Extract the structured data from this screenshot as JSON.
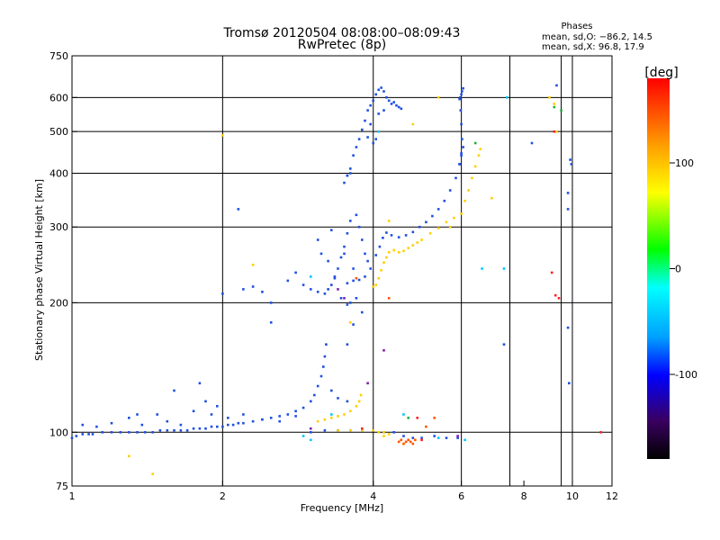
{
  "chart_data": {
    "type": "scatter",
    "title": "Tromsø 20120504 08:08:00–08:09:43",
    "subtitle": "RwPretec (8p)",
    "xlabel": "Frequency [MHz]",
    "ylabel": "Stationary phase Virtual Height [km]",
    "x_scale": "log",
    "y_scale": "log",
    "xlim": [
      1,
      12
    ],
    "ylim": [
      75,
      750
    ],
    "x_ticks": [
      1,
      2,
      4,
      6,
      8,
      10,
      12
    ],
    "y_ticks": [
      75,
      100,
      200,
      300,
      400,
      500,
      600,
      750
    ],
    "x_grid": [
      1,
      2,
      4,
      6,
      7.5,
      9.5,
      10,
      12
    ],
    "y_grid": [
      100,
      200,
      300,
      400,
      500,
      600
    ],
    "grid": true,
    "info": {
      "header": "Phases",
      "line1": "mean, sd,O: −86.2, 14.5",
      "line2": "mean, sd,X:  96.8, 17.9"
    },
    "colorbar": {
      "label": "[deg]",
      "range": [
        -180,
        180
      ],
      "ticks": [
        100,
        0,
        -100
      ],
      "colors": [
        "#000000",
        "#3a0060",
        "#0000ff",
        "#00a0ff",
        "#00ffff",
        "#00ff00",
        "#ffff00",
        "#ff9900",
        "#ff0000"
      ]
    },
    "series": [
      {
        "color": "#2050e0",
        "points": [
          [
            1.0,
            97
          ],
          [
            1.02,
            98
          ],
          [
            1.05,
            99
          ],
          [
            1.08,
            99
          ],
          [
            1.1,
            99
          ],
          [
            1.15,
            100
          ],
          [
            1.2,
            100
          ],
          [
            1.25,
            100
          ],
          [
            1.3,
            100
          ],
          [
            1.35,
            100
          ],
          [
            1.4,
            100
          ],
          [
            1.45,
            100
          ],
          [
            1.5,
            101
          ],
          [
            1.55,
            101
          ],
          [
            1.6,
            101
          ],
          [
            1.65,
            101
          ],
          [
            1.7,
            101
          ],
          [
            1.75,
            102
          ],
          [
            1.8,
            102
          ],
          [
            1.85,
            102
          ],
          [
            1.9,
            103
          ],
          [
            1.95,
            103
          ],
          [
            2.0,
            103
          ],
          [
            2.05,
            104
          ],
          [
            2.1,
            104
          ],
          [
            2.15,
            105
          ],
          [
            2.2,
            105
          ],
          [
            2.3,
            106
          ],
          [
            2.4,
            107
          ],
          [
            2.5,
            108
          ],
          [
            2.6,
            109
          ],
          [
            2.7,
            110
          ],
          [
            2.8,
            112
          ],
          [
            2.9,
            114
          ],
          [
            3.0,
            118
          ],
          [
            3.05,
            122
          ],
          [
            3.1,
            128
          ],
          [
            3.15,
            135
          ],
          [
            3.18,
            142
          ],
          [
            3.2,
            150
          ],
          [
            3.22,
            160
          ],
          [
            3.0,
            100
          ],
          [
            3.2,
            101
          ],
          [
            3.4,
            101
          ],
          [
            3.6,
            101
          ],
          [
            3.8,
            101
          ],
          [
            4.0,
            101
          ],
          [
            4.2,
            100
          ],
          [
            4.4,
            100
          ],
          [
            4.6,
            98
          ],
          [
            4.8,
            97
          ],
          [
            5.0,
            97
          ],
          [
            5.3,
            98
          ],
          [
            5.6,
            97
          ],
          [
            5.9,
            97
          ],
          [
            1.05,
            104
          ],
          [
            1.12,
            103
          ],
          [
            1.2,
            105
          ],
          [
            1.3,
            108
          ],
          [
            1.38,
            104
          ],
          [
            1.48,
            110
          ],
          [
            1.55,
            106
          ],
          [
            1.65,
            104
          ],
          [
            1.75,
            112
          ],
          [
            1.8,
            130
          ],
          [
            1.85,
            118
          ],
          [
            1.9,
            110
          ],
          [
            1.95,
            115
          ],
          [
            2.05,
            108
          ],
          [
            2.2,
            110
          ],
          [
            2.4,
            107
          ],
          [
            2.6,
            106
          ],
          [
            2.8,
            109
          ],
          [
            3.3,
            125
          ],
          [
            3.4,
            120
          ],
          [
            3.55,
            118
          ],
          [
            3.55,
            222
          ],
          [
            3.65,
            225
          ],
          [
            3.75,
            226
          ],
          [
            3.85,
            230
          ],
          [
            3.95,
            240
          ],
          [
            4.05,
            258
          ],
          [
            4.12,
            270
          ],
          [
            4.18,
            283
          ],
          [
            4.25,
            291
          ],
          [
            4.35,
            287
          ],
          [
            4.5,
            284
          ],
          [
            4.65,
            287
          ],
          [
            4.8,
            292
          ],
          [
            4.95,
            300
          ],
          [
            5.1,
            308
          ],
          [
            5.25,
            318
          ],
          [
            5.4,
            330
          ],
          [
            5.55,
            345
          ],
          [
            5.7,
            365
          ],
          [
            5.85,
            390
          ],
          [
            5.95,
            420
          ],
          [
            6.0,
            445
          ],
          [
            3.2,
            210
          ],
          [
            3.25,
            215
          ],
          [
            3.3,
            220
          ],
          [
            3.35,
            228
          ],
          [
            3.4,
            240
          ],
          [
            3.45,
            255
          ],
          [
            3.5,
            270
          ],
          [
            3.55,
            290
          ],
          [
            3.6,
            310
          ],
          [
            3.7,
            320
          ],
          [
            3.75,
            300
          ],
          [
            3.8,
            280
          ],
          [
            3.85,
            260
          ],
          [
            3.9,
            250
          ],
          [
            3.65,
            240
          ],
          [
            3.7,
            205
          ],
          [
            3.6,
            200
          ],
          [
            3.55,
            198
          ],
          [
            3.45,
            205
          ],
          [
            3.35,
            230
          ],
          [
            3.25,
            250
          ],
          [
            3.15,
            260
          ],
          [
            3.1,
            280
          ],
          [
            3.3,
            295
          ],
          [
            3.5,
            260
          ],
          [
            3.5,
            380
          ],
          [
            3.55,
            395
          ],
          [
            3.6,
            410
          ],
          [
            3.65,
            440
          ],
          [
            3.7,
            460
          ],
          [
            3.75,
            480
          ],
          [
            3.8,
            505
          ],
          [
            3.85,
            530
          ],
          [
            3.9,
            560
          ],
          [
            3.95,
            575
          ],
          [
            4.0,
            590
          ],
          [
            4.05,
            610
          ],
          [
            4.1,
            625
          ],
          [
            4.15,
            632
          ],
          [
            4.2,
            620
          ],
          [
            4.25,
            600
          ],
          [
            4.3,
            590
          ],
          [
            4.35,
            580
          ],
          [
            4.4,
            585
          ],
          [
            4.45,
            575
          ],
          [
            4.5,
            570
          ],
          [
            4.55,
            565
          ],
          [
            4.0,
            470
          ],
          [
            4.05,
            480
          ],
          [
            3.95,
            520
          ],
          [
            3.9,
            485
          ],
          [
            3.6,
            400
          ],
          [
            3.55,
            395
          ],
          [
            4.1,
            550
          ],
          [
            4.2,
            560
          ],
          [
            5.95,
            595
          ],
          [
            5.97,
            600
          ],
          [
            6.0,
            610
          ],
          [
            6.02,
            620
          ],
          [
            6.05,
            630
          ],
          [
            5.98,
            560
          ],
          [
            6.0,
            520
          ],
          [
            6.02,
            480
          ],
          [
            6.05,
            460
          ],
          [
            6.0,
            440
          ],
          [
            5.95,
            420
          ],
          [
            2.0,
            210
          ],
          [
            2.2,
            215
          ],
          [
            2.3,
            218
          ],
          [
            2.4,
            212
          ],
          [
            2.5,
            180
          ],
          [
            2.7,
            225
          ],
          [
            2.8,
            235
          ],
          [
            2.9,
            220
          ],
          [
            3.0,
            215
          ],
          [
            3.1,
            212
          ],
          [
            2.15,
            330
          ],
          [
            2.5,
            200
          ],
          [
            3.8,
            190
          ],
          [
            3.65,
            178
          ],
          [
            3.55,
            160
          ],
          [
            7.3,
            160
          ],
          [
            9.8,
            330
          ],
          [
            9.8,
            360
          ],
          [
            9.8,
            175
          ],
          [
            9.85,
            130
          ],
          [
            9.9,
            430
          ],
          [
            9.95,
            420
          ],
          [
            8.3,
            470
          ],
          [
            9.3,
            640
          ],
          [
            1.6,
            125
          ],
          [
            1.35,
            110
          ]
        ]
      },
      {
        "color": "#ffd000",
        "points": [
          [
            3.1,
            106
          ],
          [
            3.2,
            107
          ],
          [
            3.3,
            108
          ],
          [
            3.4,
            109
          ],
          [
            3.5,
            110
          ],
          [
            3.6,
            112
          ],
          [
            3.7,
            115
          ],
          [
            3.75,
            118
          ],
          [
            3.78,
            122
          ],
          [
            3.4,
            101
          ],
          [
            3.6,
            101
          ],
          [
            3.8,
            101
          ],
          [
            4.0,
            101
          ],
          [
            4.1,
            100
          ],
          [
            4.2,
            100
          ],
          [
            4.3,
            99
          ],
          [
            4.0,
            218
          ],
          [
            4.05,
            220
          ],
          [
            4.1,
            228
          ],
          [
            4.15,
            238
          ],
          [
            4.2,
            248
          ],
          [
            4.25,
            255
          ],
          [
            4.3,
            262
          ],
          [
            4.4,
            265
          ],
          [
            4.5,
            262
          ],
          [
            4.6,
            264
          ],
          [
            4.7,
            268
          ],
          [
            4.8,
            272
          ],
          [
            4.9,
            276
          ],
          [
            5.0,
            280
          ],
          [
            5.2,
            290
          ],
          [
            5.4,
            298
          ],
          [
            5.6,
            308
          ],
          [
            5.8,
            315
          ],
          [
            6.0,
            322
          ],
          [
            6.1,
            345
          ],
          [
            6.2,
            365
          ],
          [
            6.3,
            390
          ],
          [
            6.4,
            415
          ],
          [
            6.5,
            440
          ],
          [
            6.55,
            455
          ],
          [
            2.0,
            490
          ],
          [
            2.3,
            245
          ],
          [
            4.3,
            310
          ],
          [
            4.8,
            520
          ],
          [
            5.4,
            600
          ],
          [
            5.7,
            300
          ],
          [
            6.9,
            350
          ],
          [
            9.0,
            600
          ],
          [
            9.2,
            580
          ],
          [
            9.3,
            500
          ],
          [
            3.6,
            180
          ],
          [
            4.2,
            98
          ],
          [
            4.6,
            94
          ],
          [
            1.45,
            80
          ],
          [
            1.3,
            88
          ]
        ]
      },
      {
        "color": "#ff5500",
        "points": [
          [
            4.5,
            95
          ],
          [
            4.55,
            96
          ],
          [
            4.6,
            94
          ],
          [
            4.65,
            95
          ],
          [
            4.7,
            96
          ],
          [
            4.75,
            95
          ],
          [
            4.8,
            94
          ],
          [
            4.85,
            96
          ],
          [
            5.3,
            108
          ],
          [
            3.7,
            228
          ],
          [
            4.3,
            205
          ],
          [
            5.1,
            103
          ]
        ]
      },
      {
        "color": "#00c8ff",
        "points": [
          [
            2.9,
            98
          ],
          [
            3.0,
            96
          ],
          [
            3.3,
            110
          ],
          [
            4.1,
            500
          ],
          [
            5.4,
            97
          ],
          [
            6.1,
            96
          ],
          [
            7.4,
            600
          ],
          [
            7.3,
            240
          ],
          [
            6.6,
            240
          ],
          [
            3.0,
            230
          ],
          [
            4.6,
            110
          ]
        ]
      },
      {
        "color": "#8020b0",
        "points": [
          [
            3.0,
            102
          ],
          [
            3.4,
            215
          ],
          [
            3.9,
            130
          ],
          [
            4.2,
            155
          ],
          [
            3.5,
            205
          ],
          [
            5.9,
            98
          ]
        ]
      },
      {
        "color": "#20b040",
        "points": [
          [
            4.7,
            108
          ],
          [
            9.2,
            570
          ],
          [
            9.5,
            560
          ],
          [
            6.4,
            470
          ]
        ]
      },
      {
        "color": "#ff2020",
        "points": [
          [
            3.8,
            102
          ],
          [
            4.9,
            108
          ],
          [
            5.0,
            96
          ],
          [
            9.2,
            500
          ],
          [
            9.25,
            208
          ],
          [
            9.4,
            205
          ],
          [
            11.4,
            100
          ],
          [
            9.1,
            235
          ]
        ]
      }
    ]
  }
}
